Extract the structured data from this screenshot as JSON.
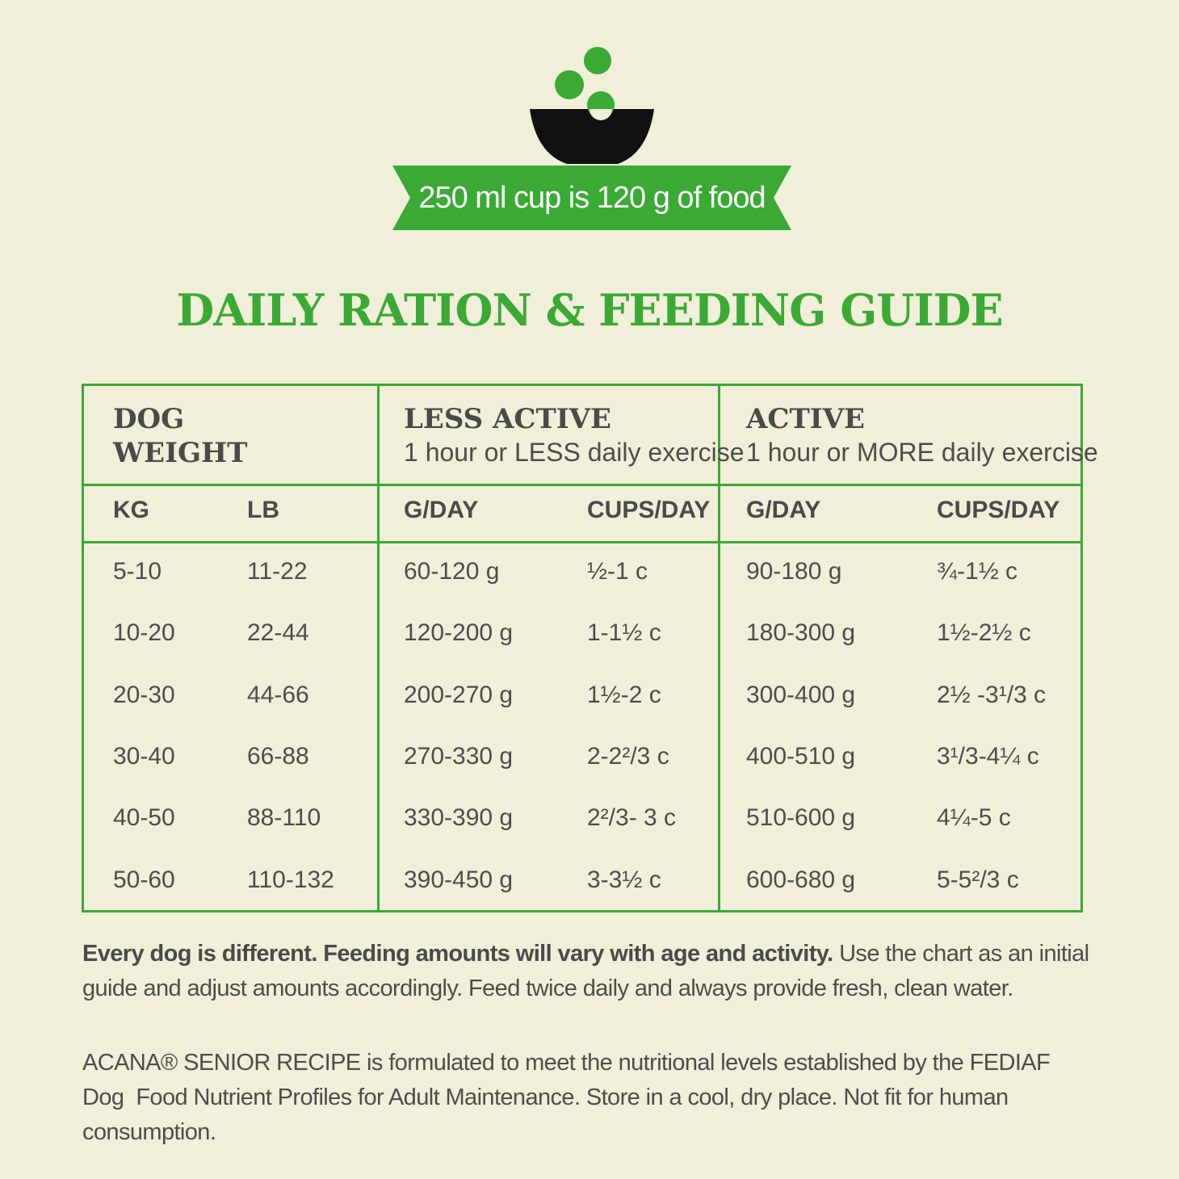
{
  "banner": "250 ml cup is 120 g of food",
  "title": "DAILY RATION & FEEDING GUIDE",
  "table": {
    "groups": [
      {
        "title": "DOG WEIGHT"
      },
      {
        "title": "LESS ACTIVE",
        "subtitle": "1 hour or LESS daily exercise"
      },
      {
        "title": "ACTIVE",
        "subtitle": "1 hour or MORE daily exercise"
      }
    ],
    "columns": [
      "KG",
      "LB",
      "G/DAY",
      "CUPS/DAY",
      "G/DAY",
      "CUPS/DAY"
    ],
    "rows": [
      [
        "5-10",
        "11-22",
        "60-120 g",
        "½-1 c",
        "90-180 g",
        "¾-1½ c"
      ],
      [
        "10-20",
        "22-44",
        "120-200 g",
        "1-1½ c",
        "180-300 g",
        "1½-2½ c"
      ],
      [
        "20-30",
        "44-66",
        "200-270 g",
        "1½-2 c",
        "300-400 g",
        "2½ -3¹/3 c"
      ],
      [
        "30-40",
        "66-88",
        "270-330 g",
        "2-2²/3 c",
        "400-510 g",
        "3¹/3-4¼ c"
      ],
      [
        "40-50",
        "88-110",
        "330-390 g",
        "2²/3- 3 c",
        "510-600 g",
        "4¼-5 c"
      ],
      [
        "50-60",
        "110-132",
        "390-450 g",
        "3-3½ c",
        "600-680 g",
        "5-5²/3 c"
      ]
    ]
  },
  "note": {
    "bold": "Every dog is different. Feeding amounts will vary with age and activity.",
    "text": "Use the chart as an initial guide and adjust amounts accordingly. Feed twice daily and always provide fresh, clean water."
  },
  "disclaimer": "ACANA® SENIOR RECIPE is formulated to meet the nutritional levels established by the FEDIAF Dog  Food Nutrient Profiles for Adult Maintenance. Store in a cool, dry place. Not fit for human consumption."
}
